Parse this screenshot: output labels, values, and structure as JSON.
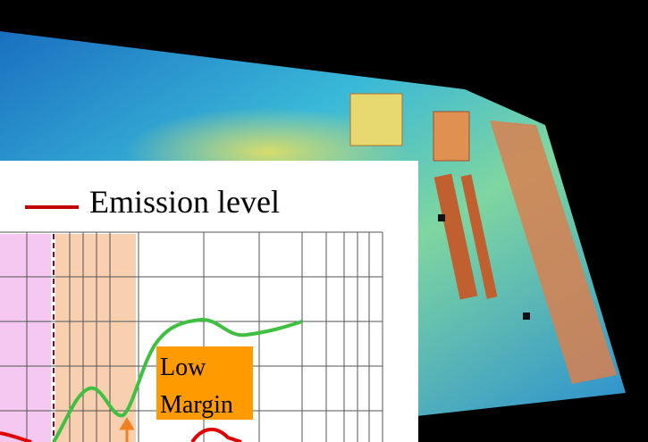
{
  "legend": {
    "label": "Emission level"
  },
  "annotation": {
    "lines": [
      "Low",
      "Margin"
    ]
  }
}
